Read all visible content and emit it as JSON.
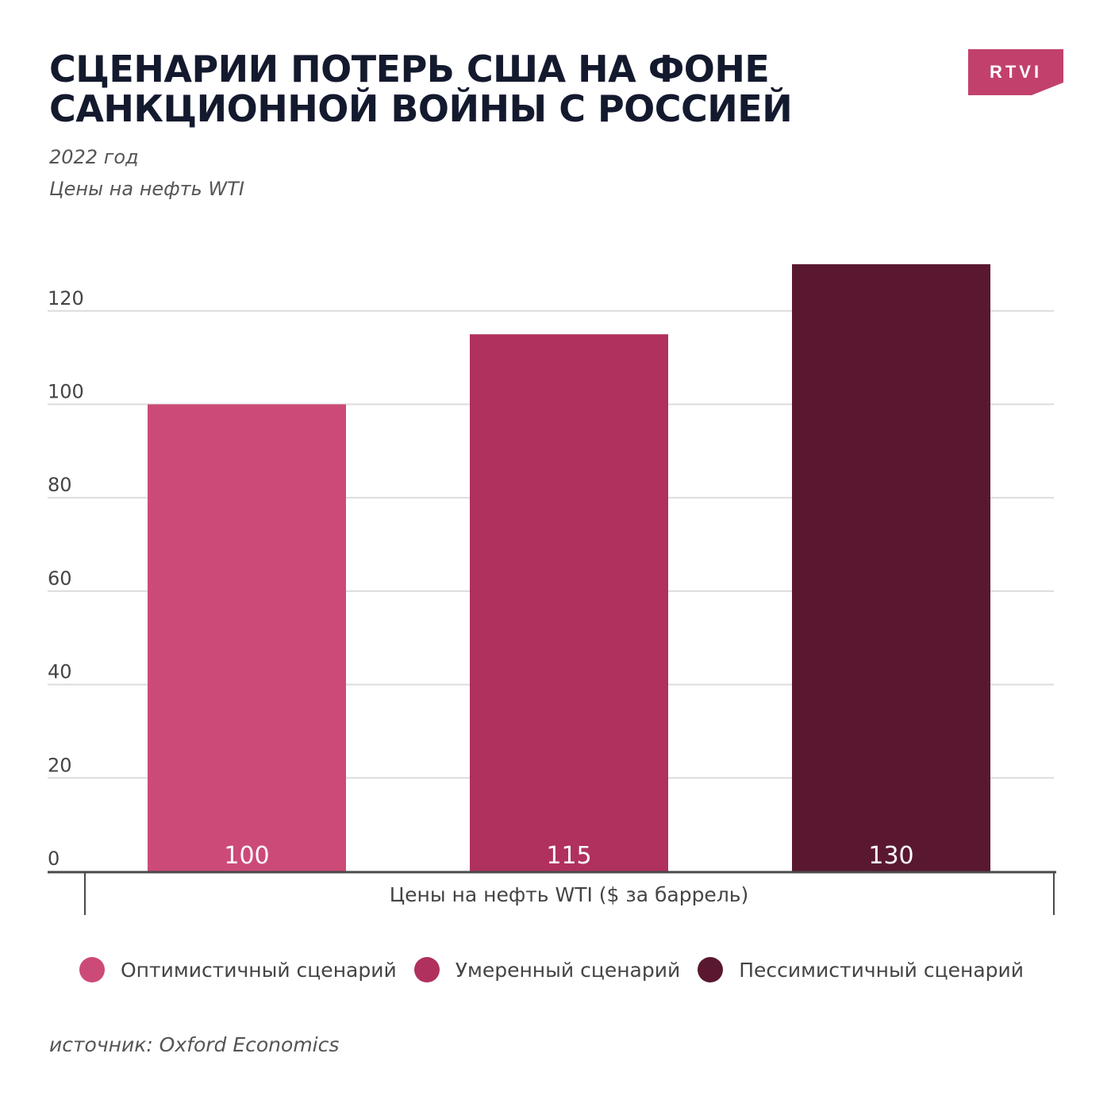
{
  "header": {
    "title_line1": "СЦЕНАРИИ ПОТЕРЬ США НА ФОНЕ",
    "title_line2": "САНКЦИОННОЙ ВОЙНЫ С РОССИЕЙ",
    "subtitle_year": "2022 год",
    "subtitle_metric": "Цены на нефть WTI"
  },
  "logo": {
    "text": "RTVI",
    "color": "#c2416c"
  },
  "legend": {
    "items": [
      {
        "label": "Оптимистичный сценарий",
        "color": "#cc4a78"
      },
      {
        "label": "Умеренный сценарий",
        "color": "#b0305e"
      },
      {
        "label": "Пессимистичный сценарий",
        "color": "#5a1830"
      }
    ]
  },
  "source": "источник: Oxford Economics",
  "chart_data": {
    "type": "bar",
    "categories": [
      "Цены на нефть WTI ($ за баррель)"
    ],
    "xlabel": "Цены на нефть WTI ($ за баррель)",
    "ylabel": "",
    "ylim": [
      0,
      130
    ],
    "yticks": [
      0,
      20,
      40,
      60,
      80,
      100,
      120
    ],
    "grid": true,
    "legend_position": "bottom",
    "series": [
      {
        "name": "Оптимистичный сценарий",
        "values": [
          100
        ],
        "label": "100",
        "color": "#cc4a78"
      },
      {
        "name": "Умеренный сценарий",
        "values": [
          115
        ],
        "label": "115",
        "color": "#b0305e"
      },
      {
        "name": "Пессимистичный сценарий",
        "values": [
          130
        ],
        "label": "130",
        "color": "#5a1830"
      }
    ]
  }
}
